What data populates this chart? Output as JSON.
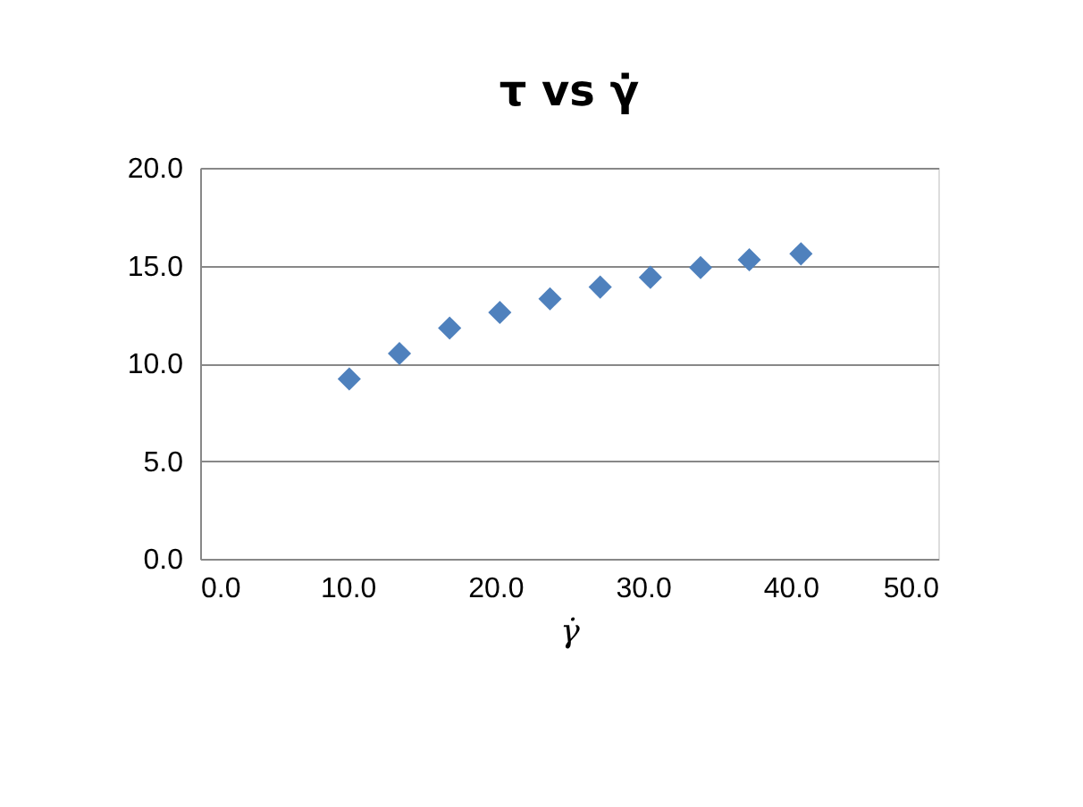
{
  "chart_data": {
    "type": "scatter",
    "title": "τ vs γ̇",
    "xlabel": "γ̇",
    "x": [
      10.1,
      13.5,
      16.9,
      20.3,
      23.7,
      27.1,
      30.5,
      33.9,
      37.2,
      40.7
    ],
    "series": [
      {
        "color": "#4f81bd",
        "values": [
          9.2,
          10.5,
          11.8,
          12.6,
          13.3,
          13.9,
          14.4,
          14.9,
          15.3,
          15.6
        ]
      }
    ],
    "xlim": [
      0,
      50
    ],
    "ylim": [
      0,
      20
    ],
    "xticks": [
      {
        "value": 0,
        "label": "0.0"
      },
      {
        "value": 10,
        "label": "10.0"
      },
      {
        "value": 20,
        "label": "20.0"
      },
      {
        "value": 30,
        "label": "30.0"
      },
      {
        "value": 40,
        "label": "40.0"
      },
      {
        "value": 50,
        "label": "50.0"
      }
    ],
    "yticks": [
      {
        "value": 0,
        "label": "0.0"
      },
      {
        "value": 5,
        "label": "5.0"
      },
      {
        "value": 10,
        "label": "10.0"
      },
      {
        "value": 15,
        "label": "15.0"
      },
      {
        "value": 20,
        "label": "20.0"
      }
    ],
    "grid": "y",
    "marker": "diamond",
    "legend": false
  }
}
